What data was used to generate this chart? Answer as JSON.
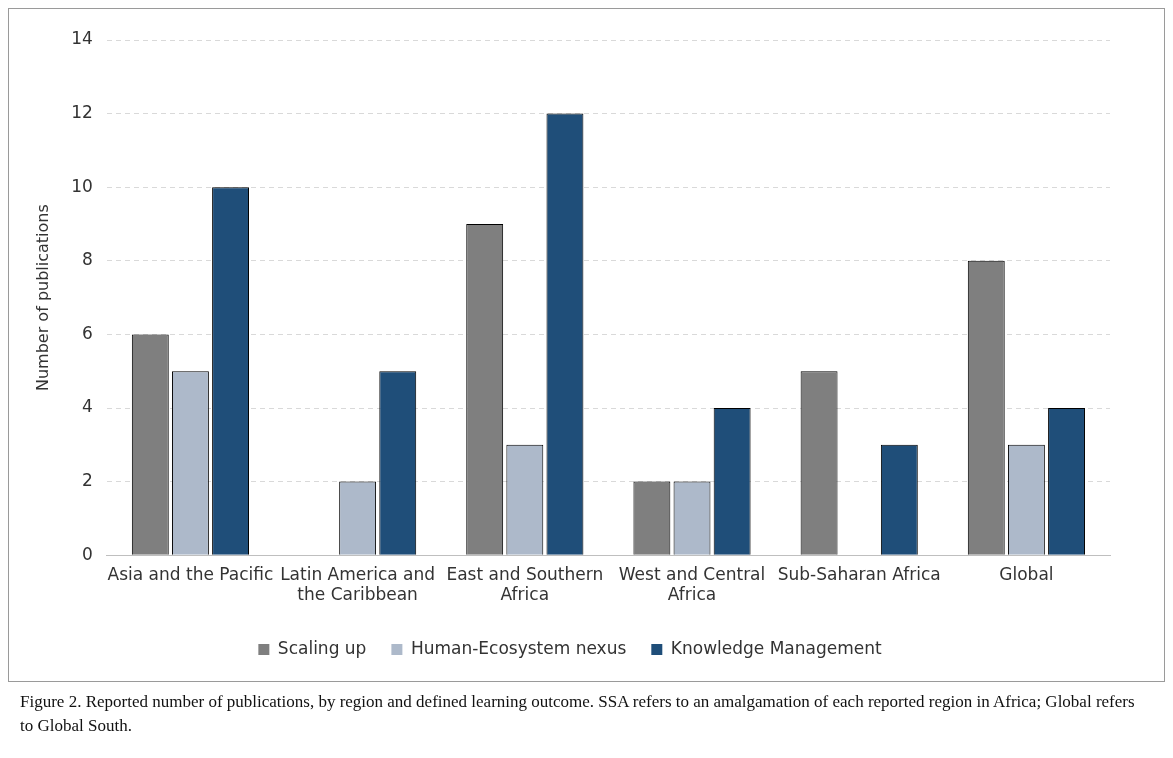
{
  "chart_data": {
    "type": "bar",
    "ylabel": "Number of publications",
    "categories": [
      "Asia and the Pacific",
      "Latin America and the Caribbean",
      "East and Southern Africa",
      "West and Central Africa",
      "Sub-Saharan Africa",
      "Global"
    ],
    "series": [
      {
        "name": "Scaling up",
        "color": "#7f7f7f",
        "values": [
          6,
          0,
          9,
          2,
          5,
          8
        ]
      },
      {
        "name": "Human-Ecosystem nexus",
        "color": "#adb9ca",
        "values": [
          5,
          2,
          3,
          2,
          0,
          3
        ]
      },
      {
        "name": "Knowledge Management",
        "color": "#1f4e79",
        "values": [
          10,
          5,
          12,
          4,
          3,
          4
        ]
      }
    ],
    "ylim": [
      0,
      14
    ],
    "yticks": [
      0,
      2,
      4,
      6,
      8,
      10,
      12,
      14
    ],
    "grid": "y",
    "legend": "bottom",
    "annotations": [
      "Figure 2. Reported number of publications, by region and defined learning outcome. SSA refers to an amalgamation of each reported region in Africa; Global refers to Global South."
    ]
  }
}
